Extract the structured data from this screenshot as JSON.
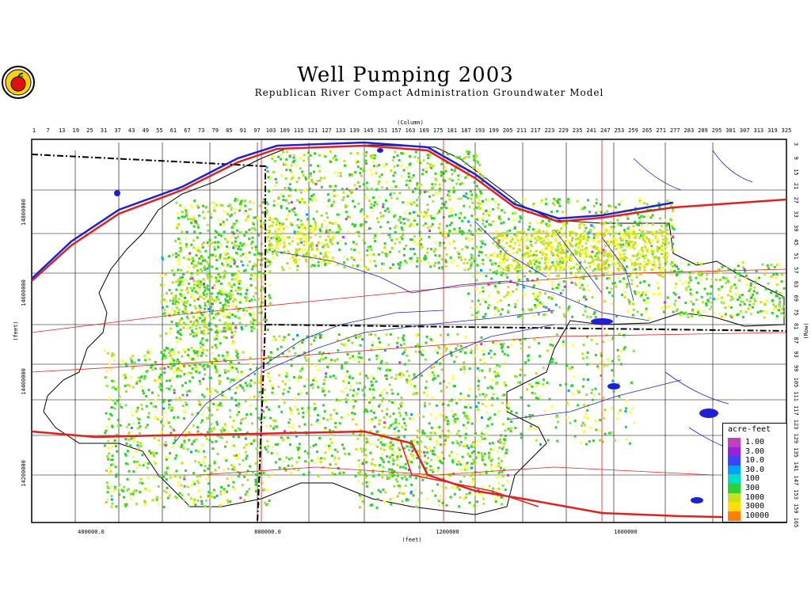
{
  "title": "Well Pumping 2003",
  "subtitle": "Republican River Compact Administration Groundwater Model",
  "logo_icon": "apple-seal-icon",
  "axes": {
    "column_label": "(Column)",
    "row_label": "(Row)",
    "x_label": "(feet)",
    "y_label": "(feet)",
    "column_ticks": [
      "1",
      "7",
      "13",
      "19",
      "25",
      "31",
      "37",
      "43",
      "49",
      "55",
      "61",
      "67",
      "73",
      "79",
      "85",
      "91",
      "97",
      "103",
      "109",
      "115",
      "121",
      "127",
      "133",
      "139",
      "145",
      "151",
      "157",
      "163",
      "169",
      "175",
      "181",
      "187",
      "193",
      "199",
      "205",
      "211",
      "217",
      "223",
      "229",
      "235",
      "241",
      "247",
      "253",
      "259",
      "265",
      "271",
      "277",
      "283",
      "289",
      "295",
      "301",
      "307",
      "313",
      "319",
      "325"
    ],
    "row_ticks": [
      "3",
      "9",
      "15",
      "21",
      "27",
      "33",
      "39",
      "45",
      "51",
      "57",
      "63",
      "69",
      "75",
      "81",
      "87",
      "93",
      "99",
      "105",
      "111",
      "117",
      "123",
      "129",
      "135",
      "141",
      "147",
      "153",
      "159",
      "165"
    ],
    "x_ticks": [
      "400000.0",
      "800000.0",
      "1200000",
      "1600000"
    ],
    "y_ticks": [
      "14800000",
      "14600000",
      "14400000",
      "14200000"
    ]
  },
  "legend": {
    "title": "acre-feet",
    "items": [
      {
        "label": "1.00",
        "color": "#c040c0"
      },
      {
        "label": "3.00",
        "color": "#9a20e0"
      },
      {
        "label": "10.0",
        "color": "#4040ff"
      },
      {
        "label": "30.0",
        "color": "#00a0ff"
      },
      {
        "label": "100",
        "color": "#00e0c0"
      },
      {
        "label": "300",
        "color": "#30d030"
      },
      {
        "label": "1000",
        "color": "#c8e020"
      },
      {
        "label": "3000",
        "color": "#ffe000"
      },
      {
        "label": "10000",
        "color": "#ff8000"
      }
    ]
  },
  "colors": {
    "highway": "#e02020",
    "stream": "#2020d0",
    "boundary": "#000000",
    "pumping_low": "#30d030",
    "pumping_mid": "#c8e020",
    "pumping_high": "#ffff40"
  }
}
